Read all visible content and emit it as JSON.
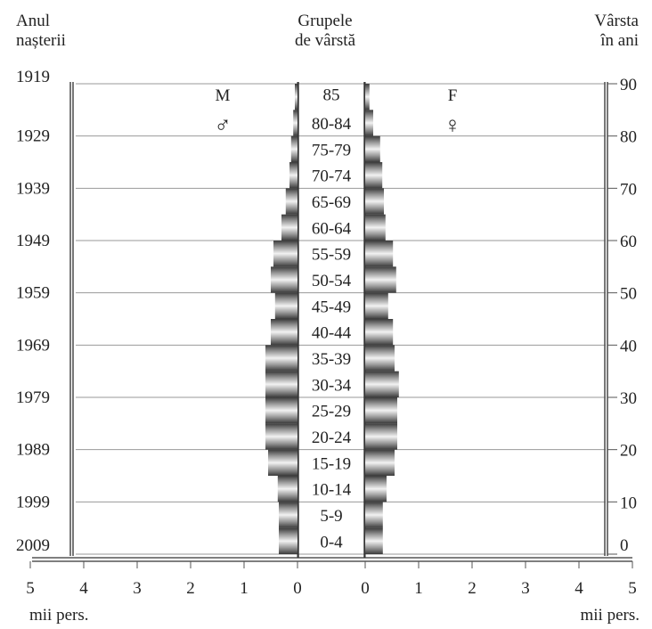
{
  "header": {
    "left_line1": "Anul",
    "left_line2": "nașterii",
    "center_line1": "Grupele",
    "center_line2": "de vârstă",
    "right_line1": "Vârsta",
    "right_line2": "în ani"
  },
  "sex_labels": {
    "male": "M",
    "male_symbol": "♂",
    "female": "F",
    "female_symbol": "♀"
  },
  "chart_data": {
    "type": "bar",
    "orientation": "horizontal",
    "subtype": "population-pyramid",
    "categories": [
      "0-4",
      "5-9",
      "10-14",
      "15-19",
      "20-24",
      "25-29",
      "30-34",
      "35-39",
      "40-44",
      "45-49",
      "50-54",
      "55-59",
      "60-64",
      "65-69",
      "70-74",
      "75-79",
      "80-84",
      "85"
    ],
    "series": [
      {
        "name": "M",
        "values": [
          0.35,
          0.35,
          0.37,
          0.55,
          0.6,
          0.6,
          0.6,
          0.6,
          0.5,
          0.42,
          0.5,
          0.45,
          0.3,
          0.22,
          0.15,
          0.12,
          0.08,
          0.05
        ]
      },
      {
        "name": "F",
        "values": [
          0.33,
          0.33,
          0.4,
          0.55,
          0.6,
          0.6,
          0.63,
          0.55,
          0.52,
          0.43,
          0.58,
          0.52,
          0.38,
          0.35,
          0.32,
          0.28,
          0.15,
          0.08
        ]
      }
    ],
    "xlabel": "mii pers.",
    "xlim": [
      0,
      5
    ],
    "x_ticks": [
      "5",
      "4",
      "3",
      "2",
      "1",
      "0",
      "0",
      "1",
      "2",
      "3",
      "4",
      "5"
    ],
    "birth_year_ticks": [
      "1919",
      "1929",
      "1939",
      "1949",
      "1959",
      "1969",
      "1979",
      "1989",
      "1999",
      "2009"
    ],
    "age_ticks": [
      "90",
      "80",
      "70",
      "60",
      "50",
      "40",
      "30",
      "20",
      "10",
      "0"
    ],
    "grid": true,
    "colors": {
      "bar_dark": "#3a3a3a",
      "bar_light": "#f2f2f2",
      "grid": "#9a9a9a"
    }
  }
}
